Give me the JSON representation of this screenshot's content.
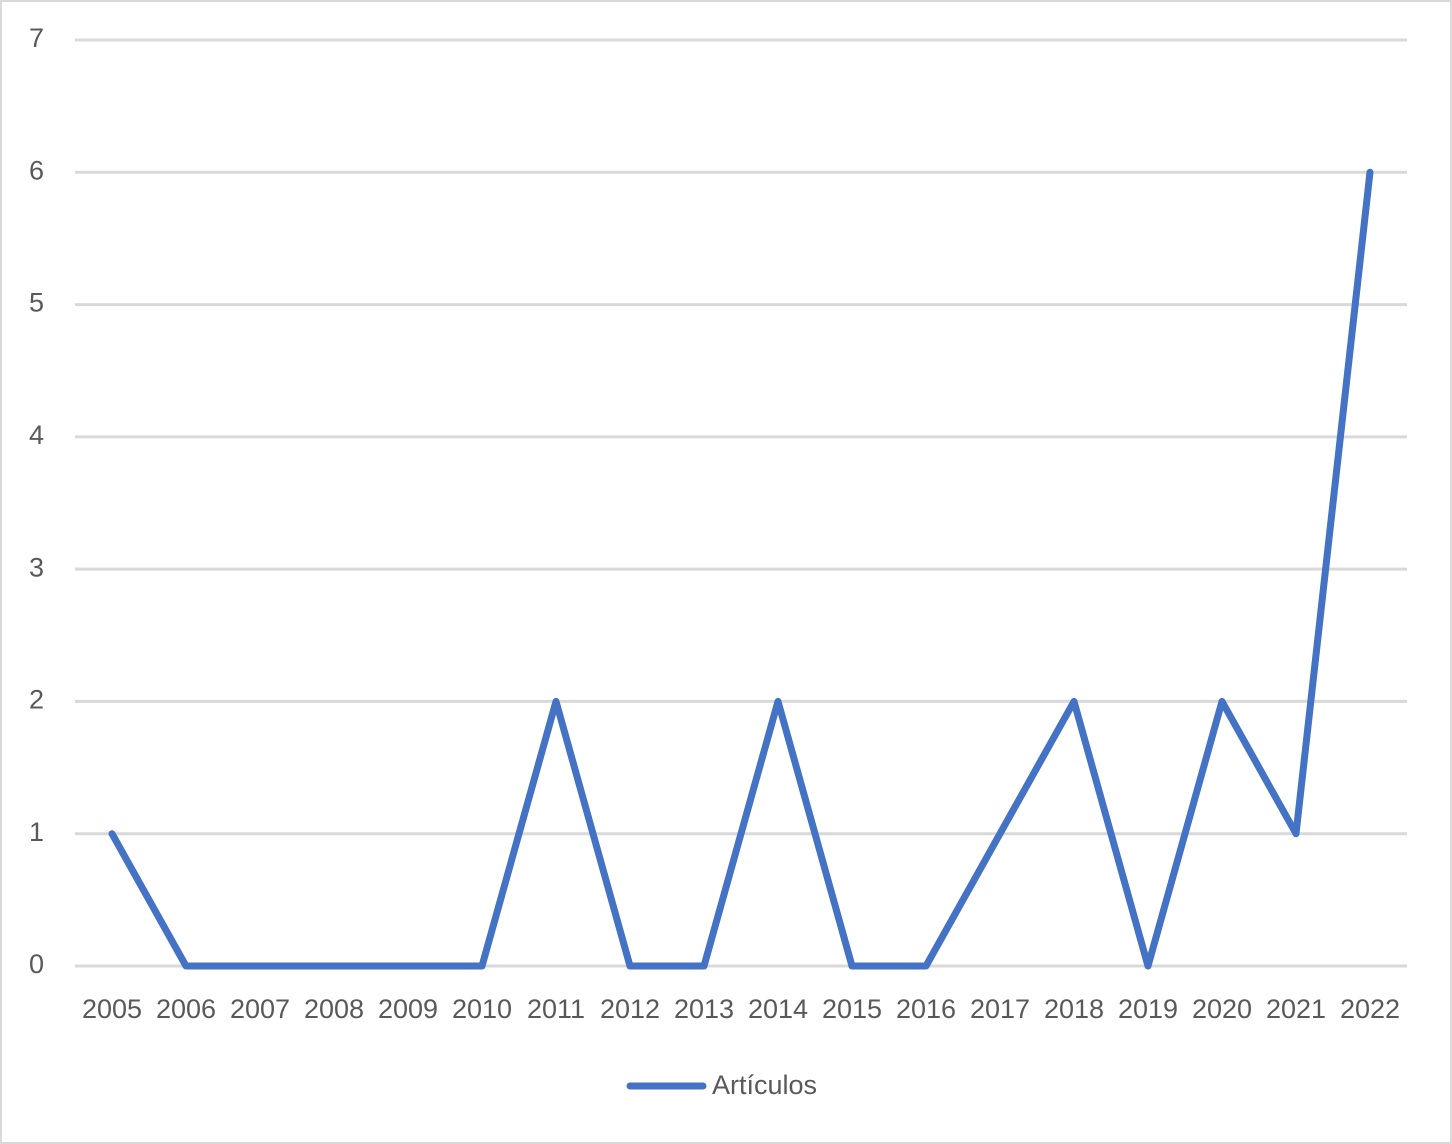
{
  "chart_data": {
    "type": "line",
    "categories": [
      "2005",
      "2006",
      "2007",
      "2008",
      "2009",
      "2010",
      "2011",
      "2012",
      "2013",
      "2014",
      "2015",
      "2016",
      "2017",
      "2018",
      "2019",
      "2020",
      "2021",
      "2022"
    ],
    "series": [
      {
        "name": "Artículos",
        "color": "#4472c4",
        "values": [
          1,
          0,
          0,
          0,
          0,
          0,
          2,
          0,
          0,
          2,
          0,
          0,
          1,
          2,
          0,
          2,
          1,
          6
        ]
      }
    ],
    "ylim": [
      0,
      7
    ],
    "yticks": [
      0,
      1,
      2,
      3,
      4,
      5,
      6,
      7
    ],
    "grid": true,
    "legend": "bottom"
  }
}
